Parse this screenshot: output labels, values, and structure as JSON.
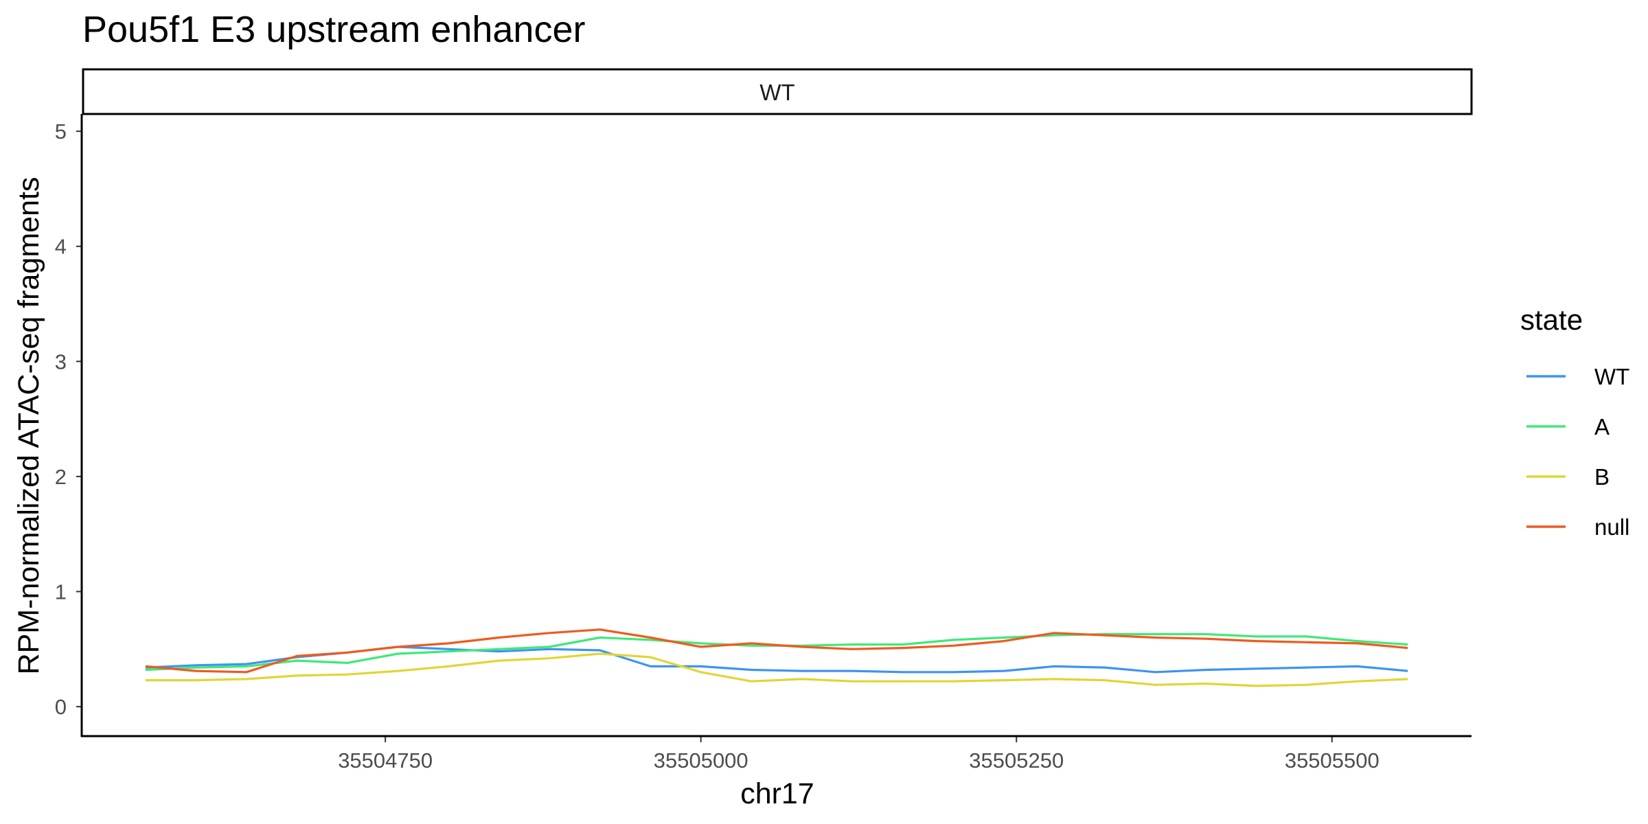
{
  "chart_data": {
    "type": "line",
    "title": "Pou5f1 E3 upstream enhancer",
    "facet": "WT",
    "xlabel": "chr17",
    "ylabel": "RPM-normalized ATAC-seq fragments",
    "xlim": [
      35504510,
      35505610
    ],
    "ylim": [
      -0.25,
      5.15
    ],
    "x_ticks": [
      35504750,
      35505000,
      35505250,
      35505500
    ],
    "y_ticks": [
      0,
      1,
      2,
      3,
      4,
      5
    ],
    "legend_title": "state",
    "legend_position": "right",
    "grid": false,
    "x": [
      35504560,
      35504600,
      35504640,
      35504680,
      35504720,
      35504760,
      35504800,
      35504840,
      35504880,
      35504920,
      35504960,
      35505000,
      35505040,
      35505080,
      35505120,
      35505160,
      35505200,
      35505240,
      35505280,
      35505320,
      35505360,
      35505400,
      35505440,
      35505480,
      35505520,
      35505560
    ],
    "series": [
      {
        "name": "WT",
        "color": "#3d94f0",
        "values": [
          0.34,
          0.36,
          0.37,
          0.43,
          0.47,
          0.52,
          0.5,
          0.48,
          0.5,
          0.49,
          0.35,
          0.35,
          0.32,
          0.31,
          0.31,
          0.3,
          0.3,
          0.31,
          0.35,
          0.34,
          0.3,
          0.32,
          0.33,
          0.34,
          0.35,
          0.31
        ]
      },
      {
        "name": "A",
        "color": "#40e87a",
        "values": [
          0.32,
          0.34,
          0.35,
          0.4,
          0.38,
          0.46,
          0.48,
          0.5,
          0.52,
          0.6,
          0.58,
          0.55,
          0.53,
          0.53,
          0.54,
          0.54,
          0.58,
          0.6,
          0.62,
          0.63,
          0.63,
          0.63,
          0.61,
          0.61,
          0.57,
          0.54
        ]
      },
      {
        "name": "B",
        "color": "#e0d635",
        "values": [
          0.23,
          0.23,
          0.24,
          0.27,
          0.28,
          0.31,
          0.35,
          0.4,
          0.42,
          0.46,
          0.43,
          0.3,
          0.22,
          0.24,
          0.22,
          0.22,
          0.22,
          0.23,
          0.24,
          0.23,
          0.19,
          0.2,
          0.18,
          0.19,
          0.22,
          0.24
        ]
      },
      {
        "name": "null",
        "color": "#ef5a1e",
        "values": [
          0.35,
          0.31,
          0.3,
          0.44,
          0.47,
          0.52,
          0.55,
          0.6,
          0.64,
          0.67,
          0.6,
          0.52,
          0.55,
          0.52,
          0.5,
          0.51,
          0.53,
          0.57,
          0.64,
          0.62,
          0.6,
          0.59,
          0.57,
          0.56,
          0.55,
          0.51
        ]
      }
    ]
  }
}
